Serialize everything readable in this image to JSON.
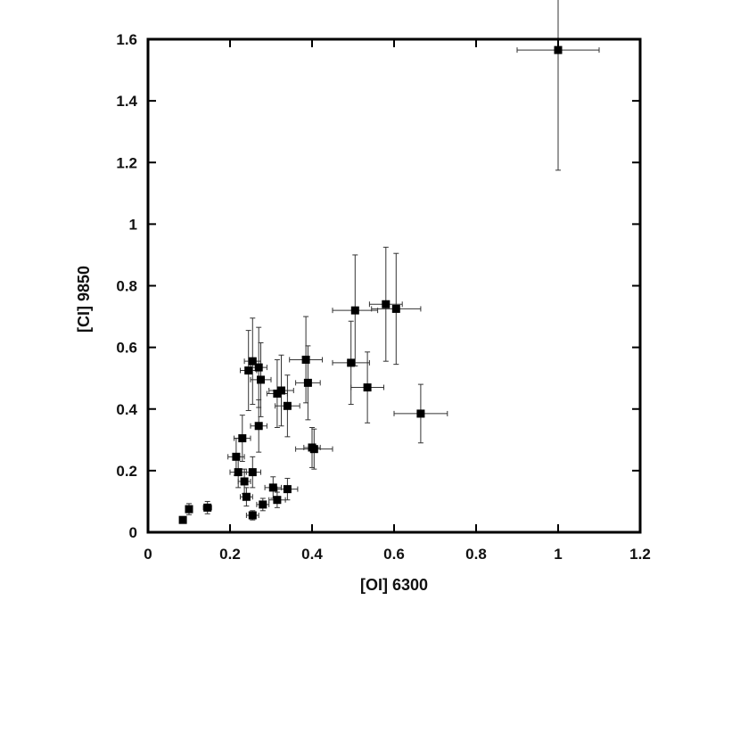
{
  "chart_data": {
    "type": "scatter",
    "title": "",
    "xlabel": "[OI] 6300",
    "ylabel": "[CI] 9850",
    "xlim": [
      0,
      1.2
    ],
    "ylim": [
      0,
      1.6
    ],
    "xticks": [
      0,
      0.2,
      0.4,
      0.6,
      0.8,
      1,
      1.2
    ],
    "yticks": [
      0,
      0.2,
      0.4,
      0.6,
      0.8,
      1,
      1.2,
      1.4,
      1.6
    ],
    "xtick_labels": [
      "0",
      "0.2",
      "0.4",
      "0.6",
      "0.8",
      "1",
      "1.2"
    ],
    "ytick_labels": [
      "0",
      "0.2",
      "0.4",
      "0.6",
      "0.8",
      "1",
      "1.2",
      "1.4",
      "1.6"
    ],
    "grid": false,
    "marker": "square",
    "color": "#000000",
    "points": [
      {
        "x": 1.0,
        "y": 1.565,
        "xerr": 0.1,
        "yerr": 0.39
      },
      {
        "x": 0.58,
        "y": 0.74,
        "xerr": 0.04,
        "yerr": 0.185
      },
      {
        "x": 0.605,
        "y": 0.725,
        "xerr": 0.06,
        "yerr": 0.18
      },
      {
        "x": 0.505,
        "y": 0.72,
        "xerr": 0.055,
        "yerr": 0.18
      },
      {
        "x": 0.495,
        "y": 0.55,
        "xerr": 0.045,
        "yerr": 0.135
      },
      {
        "x": 0.535,
        "y": 0.47,
        "xerr": 0.04,
        "yerr": 0.115
      },
      {
        "x": 0.665,
        "y": 0.385,
        "xerr": 0.065,
        "yerr": 0.095
      },
      {
        "x": 0.385,
        "y": 0.56,
        "xerr": 0.04,
        "yerr": 0.14
      },
      {
        "x": 0.39,
        "y": 0.485,
        "xerr": 0.03,
        "yerr": 0.12
      },
      {
        "x": 0.34,
        "y": 0.41,
        "xerr": 0.03,
        "yerr": 0.1
      },
      {
        "x": 0.325,
        "y": 0.46,
        "xerr": 0.03,
        "yerr": 0.115
      },
      {
        "x": 0.315,
        "y": 0.45,
        "xerr": 0.025,
        "yerr": 0.11
      },
      {
        "x": 0.275,
        "y": 0.495,
        "xerr": 0.025,
        "yerr": 0.12
      },
      {
        "x": 0.255,
        "y": 0.555,
        "xerr": 0.02,
        "yerr": 0.14
      },
      {
        "x": 0.245,
        "y": 0.525,
        "xerr": 0.02,
        "yerr": 0.13
      },
      {
        "x": 0.27,
        "y": 0.535,
        "xerr": 0.02,
        "yerr": 0.13
      },
      {
        "x": 0.27,
        "y": 0.345,
        "xerr": 0.02,
        "yerr": 0.085
      },
      {
        "x": 0.23,
        "y": 0.305,
        "xerr": 0.02,
        "yerr": 0.075
      },
      {
        "x": 0.215,
        "y": 0.245,
        "xerr": 0.02,
        "yerr": 0.06
      },
      {
        "x": 0.22,
        "y": 0.195,
        "xerr": 0.02,
        "yerr": 0.05
      },
      {
        "x": 0.235,
        "y": 0.165,
        "xerr": 0.015,
        "yerr": 0.04
      },
      {
        "x": 0.255,
        "y": 0.195,
        "xerr": 0.02,
        "yerr": 0.05
      },
      {
        "x": 0.24,
        "y": 0.115,
        "xerr": 0.015,
        "yerr": 0.03
      },
      {
        "x": 0.255,
        "y": 0.055,
        "xerr": 0.015,
        "yerr": 0.015
      },
      {
        "x": 0.28,
        "y": 0.09,
        "xerr": 0.015,
        "yerr": 0.02
      },
      {
        "x": 0.305,
        "y": 0.145,
        "xerr": 0.02,
        "yerr": 0.035
      },
      {
        "x": 0.315,
        "y": 0.105,
        "xerr": 0.02,
        "yerr": 0.025
      },
      {
        "x": 0.34,
        "y": 0.14,
        "xerr": 0.025,
        "yerr": 0.035
      },
      {
        "x": 0.405,
        "y": 0.27,
        "xerr": 0.045,
        "yerr": 0.065
      },
      {
        "x": 0.4,
        "y": 0.275,
        "xerr": 0.02,
        "yerr": 0.065
      },
      {
        "x": 0.145,
        "y": 0.08,
        "xerr": 0.01,
        "yerr": 0.02
      },
      {
        "x": 0.1,
        "y": 0.075,
        "xerr": 0.008,
        "yerr": 0.018
      },
      {
        "x": 0.085,
        "y": 0.04,
        "xerr": 0.006,
        "yerr": 0.01
      }
    ]
  }
}
